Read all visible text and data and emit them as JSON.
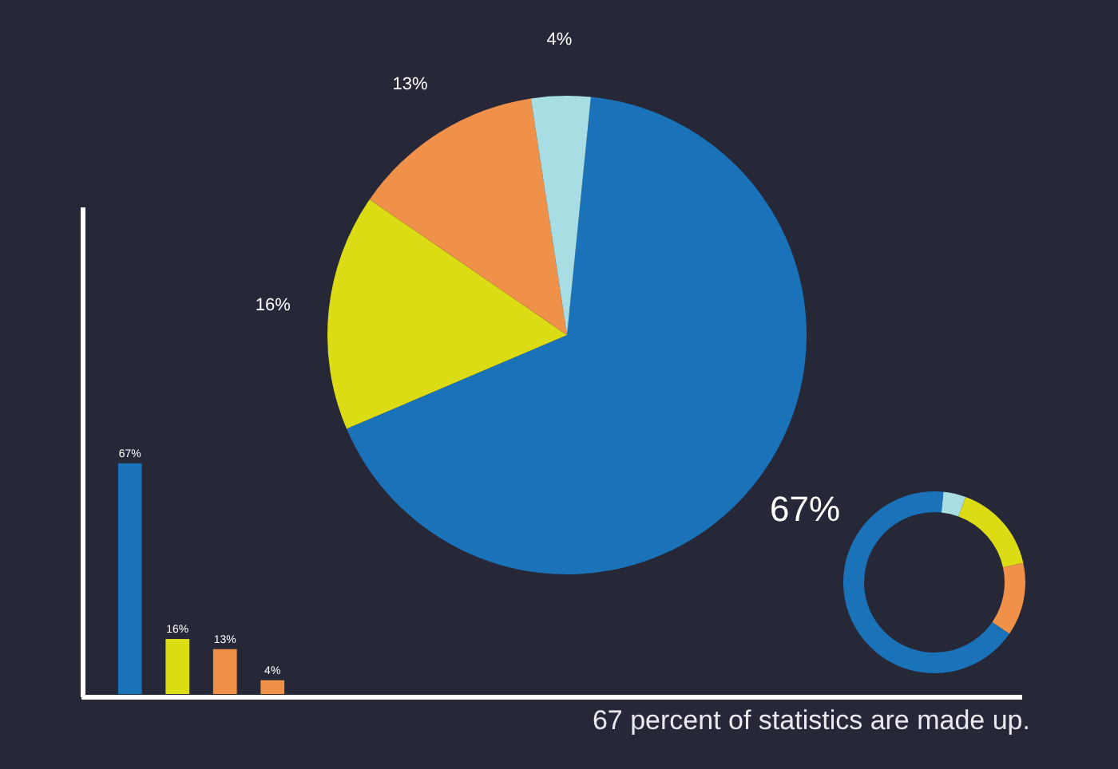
{
  "chart_data": [
    {
      "type": "pie",
      "categories": [
        null,
        null,
        null,
        null
      ],
      "values": [
        67,
        16,
        13,
        4
      ],
      "colors": [
        "#1a72b9",
        "#dcdc14",
        "#f0914a",
        "#a8dde3"
      ],
      "value_labels": [
        "67%",
        "16%",
        "13%",
        "4%"
      ]
    },
    {
      "type": "bar",
      "categories": [
        null,
        null,
        null,
        null
      ],
      "values": [
        67,
        16,
        13,
        4
      ],
      "colors": [
        "#1a72b9",
        "#dcdc14",
        "#f0914a",
        "#f0914a"
      ],
      "value_labels": [
        "67%",
        "16%",
        "13%",
        "4%"
      ],
      "annotations": [
        "67 percent of statistics are made up."
      ]
    },
    {
      "type": "donut",
      "categories": [
        null,
        null,
        null,
        null
      ],
      "values": [
        4,
        16,
        13,
        67
      ],
      "colors": [
        "#a8dde3",
        "#dcdc14",
        "#f0914a",
        "#1a72b9"
      ]
    }
  ]
}
